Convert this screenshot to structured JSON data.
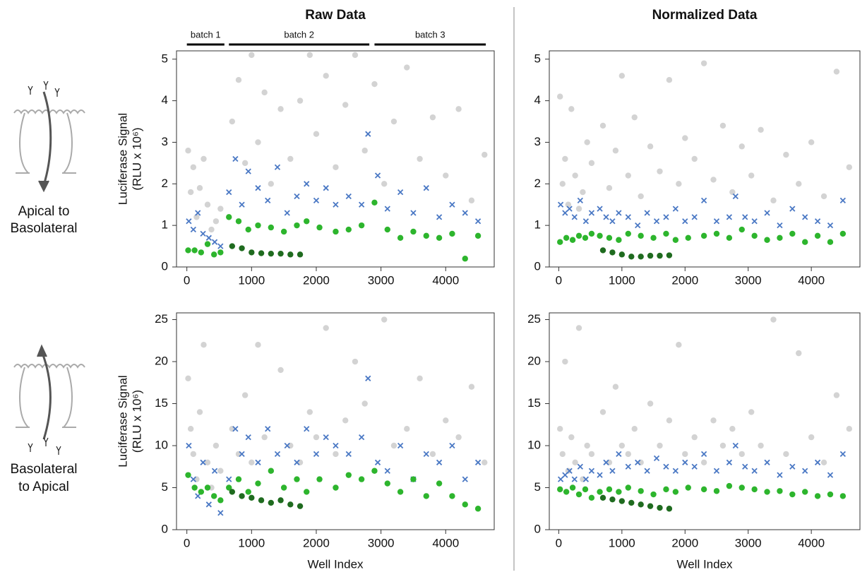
{
  "row_labels": [
    [
      "Apical to",
      "Basolateral"
    ],
    [
      "Basolateral",
      "to Apical"
    ]
  ],
  "chart_data": [
    {
      "type": "scatter",
      "title": "Raw Data",
      "y_label": [
        "Luciferase Signal",
        "(RLU x 10⁶)"
      ],
      "batches": [
        {
          "label": "batch 1",
          "range": [
            0,
            580
          ]
        },
        {
          "label": "batch 2",
          "range": [
            650,
            2820
          ]
        },
        {
          "label": "batch 3",
          "range": [
            2900,
            4620
          ]
        }
      ],
      "xlim": [
        -160,
        4750
      ],
      "xticks": [
        0,
        1000,
        2000,
        3000,
        4000
      ],
      "ylim": [
        0,
        5.2
      ],
      "yticks": [
        0,
        1,
        2,
        3,
        4,
        5
      ],
      "series": [
        {
          "color": "#d3d3d3",
          "marker": "o",
          "x": [
            20,
            60,
            100,
            150,
            200,
            260,
            320,
            380,
            450,
            520,
            700,
            800,
            900,
            1000,
            1100,
            1200,
            1300,
            1450,
            1600,
            1750,
            1900,
            2000,
            2150,
            2300,
            2450,
            2600,
            2750,
            2900,
            3050,
            3200,
            3400,
            3600,
            3800,
            4000,
            4200,
            4400,
            4600
          ],
          "values": [
            2.8,
            1.8,
            2.4,
            1.2,
            1.9,
            2.6,
            1.5,
            0.9,
            1.1,
            1.4,
            3.5,
            4.5,
            2.5,
            5.1,
            3.0,
            4.2,
            2.0,
            3.8,
            2.6,
            4.0,
            5.1,
            3.2,
            4.6,
            2.4,
            3.9,
            5.1,
            2.8,
            4.4,
            2.0,
            3.5,
            4.8,
            2.6,
            3.6,
            2.2,
            3.8,
            1.6,
            2.7
          ]
        },
        {
          "color": "#4a78c4",
          "marker": "x",
          "x": [
            30,
            100,
            170,
            250,
            340,
            430,
            520,
            650,
            750,
            850,
            950,
            1100,
            1250,
            1400,
            1550,
            1700,
            1850,
            2000,
            2150,
            2300,
            2500,
            2700,
            2800,
            2950,
            3100,
            3300,
            3500,
            3700,
            3900,
            4100,
            4300,
            4500
          ],
          "values": [
            1.1,
            0.9,
            1.3,
            0.8,
            0.7,
            0.6,
            0.5,
            1.8,
            2.6,
            1.5,
            2.3,
            1.9,
            1.6,
            2.4,
            1.3,
            1.7,
            2.0,
            1.6,
            1.9,
            1.5,
            1.7,
            1.5,
            3.2,
            2.2,
            1.4,
            1.8,
            1.3,
            1.9,
            1.2,
            1.5,
            1.3,
            1.1
          ]
        },
        {
          "color": "#2db52d",
          "marker": "o",
          "x": [
            20,
            120,
            220,
            320,
            420,
            520,
            650,
            800,
            950,
            1100,
            1300,
            1500,
            1700,
            1850,
            2050,
            2300,
            2500,
            2700,
            2900,
            3100,
            3300,
            3500,
            3700,
            3900,
            4100,
            4300,
            4500
          ],
          "values": [
            0.4,
            0.4,
            0.35,
            0.55,
            0.3,
            0.35,
            1.2,
            1.1,
            0.9,
            1.0,
            0.95,
            0.85,
            1.0,
            1.1,
            0.95,
            0.85,
            0.9,
            1.0,
            1.55,
            0.9,
            0.7,
            0.85,
            0.75,
            0.7,
            0.8,
            0.2,
            0.75
          ]
        },
        {
          "color": "#1f6b1f",
          "marker": "o",
          "x": [
            700,
            850,
            1000,
            1150,
            1300,
            1450,
            1600,
            1750
          ],
          "values": [
            0.5,
            0.45,
            0.35,
            0.33,
            0.32,
            0.32,
            0.3,
            0.3
          ]
        }
      ]
    },
    {
      "type": "scatter",
      "title": "Normalized Data",
      "xlim": [
        -150,
        4770
      ],
      "xticks": [
        0,
        1000,
        2000,
        3000,
        4000
      ],
      "ylim": [
        0,
        5.2
      ],
      "yticks": [
        0,
        1,
        2,
        3,
        4,
        5
      ],
      "series": [
        {
          "color": "#d3d3d3",
          "marker": "o",
          "x": [
            20,
            60,
            100,
            150,
            200,
            260,
            320,
            380,
            450,
            520,
            700,
            800,
            900,
            1000,
            1100,
            1200,
            1300,
            1450,
            1600,
            1750,
            1900,
            2000,
            2150,
            2300,
            2450,
            2600,
            2750,
            2900,
            3050,
            3200,
            3400,
            3600,
            3800,
            4000,
            4200,
            4400,
            4600
          ],
          "values": [
            4.1,
            2.0,
            2.6,
            1.5,
            3.8,
            2.2,
            1.4,
            1.8,
            3.0,
            2.5,
            3.4,
            1.9,
            2.8,
            4.6,
            2.2,
            3.6,
            1.7,
            2.9,
            2.3,
            4.5,
            2.0,
            3.1,
            2.6,
            4.9,
            2.1,
            3.4,
            1.8,
            2.9,
            2.2,
            3.3,
            1.6,
            2.7,
            2.0,
            3.0,
            1.7,
            4.7,
            2.4
          ]
        },
        {
          "color": "#4a78c4",
          "marker": "x",
          "x": [
            30,
            100,
            170,
            250,
            340,
            430,
            520,
            650,
            750,
            850,
            950,
            1100,
            1250,
            1400,
            1550,
            1700,
            1850,
            2000,
            2150,
            2300,
            2500,
            2700,
            2800,
            2950,
            3100,
            3300,
            3500,
            3700,
            3900,
            4100,
            4300,
            4500
          ],
          "values": [
            1.5,
            1.3,
            1.4,
            1.2,
            1.6,
            1.1,
            1.3,
            1.4,
            1.2,
            1.1,
            1.3,
            1.2,
            1.0,
            1.3,
            1.1,
            1.2,
            1.4,
            1.1,
            1.2,
            1.6,
            1.1,
            1.2,
            1.7,
            1.2,
            1.1,
            1.3,
            1.0,
            1.4,
            1.2,
            1.1,
            1.0,
            1.6
          ]
        },
        {
          "color": "#2db52d",
          "marker": "o",
          "x": [
            20,
            120,
            220,
            320,
            420,
            520,
            650,
            800,
            950,
            1100,
            1300,
            1500,
            1700,
            1850,
            2050,
            2300,
            2500,
            2700,
            2900,
            3100,
            3300,
            3500,
            3700,
            3900,
            4100,
            4300,
            4500
          ],
          "values": [
            0.6,
            0.7,
            0.65,
            0.75,
            0.7,
            0.8,
            0.75,
            0.7,
            0.65,
            0.8,
            0.75,
            0.7,
            0.8,
            0.65,
            0.7,
            0.75,
            0.8,
            0.7,
            0.9,
            0.75,
            0.65,
            0.7,
            0.8,
            0.6,
            0.75,
            0.6,
            0.8
          ]
        },
        {
          "color": "#1f6b1f",
          "marker": "o",
          "x": [
            700,
            850,
            1000,
            1150,
            1300,
            1450,
            1600,
            1750
          ],
          "values": [
            0.4,
            0.35,
            0.3,
            0.25,
            0.25,
            0.27,
            0.27,
            0.28
          ]
        }
      ]
    },
    {
      "type": "scatter",
      "y_label": [
        "Luciferase Signal",
        "(RLU x 10⁶)"
      ],
      "x_label": "Well Index",
      "xlim": [
        -160,
        4750
      ],
      "xticks": [
        0,
        1000,
        2000,
        3000,
        4000
      ],
      "ylim": [
        0,
        25.8
      ],
      "yticks": [
        0,
        5,
        10,
        15,
        20,
        25
      ],
      "series": [
        {
          "color": "#d3d3d3",
          "marker": "o",
          "x": [
            20,
            60,
            100,
            150,
            200,
            260,
            320,
            380,
            450,
            520,
            700,
            800,
            900,
            1000,
            1100,
            1200,
            1300,
            1450,
            1600,
            1750,
            1900,
            2000,
            2150,
            2300,
            2450,
            2600,
            2750,
            2900,
            3050,
            3200,
            3400,
            3600,
            3800,
            4000,
            4200,
            4400,
            4600
          ],
          "values": [
            18,
            12,
            9,
            6,
            14,
            22,
            8,
            5,
            10,
            7,
            12,
            9,
            16,
            8,
            22,
            11,
            7,
            19,
            10,
            8,
            14,
            11,
            24,
            9,
            13,
            20,
            15,
            7,
            25,
            10,
            12,
            18,
            9,
            13,
            11,
            17,
            8
          ]
        },
        {
          "color": "#4a78c4",
          "marker": "x",
          "x": [
            30,
            100,
            170,
            250,
            340,
            430,
            520,
            650,
            750,
            850,
            950,
            1100,
            1250,
            1400,
            1550,
            1700,
            1850,
            2000,
            2150,
            2300,
            2500,
            2700,
            2800,
            2950,
            3100,
            3300,
            3500,
            3700,
            3900,
            4100,
            4300,
            4500
          ],
          "values": [
            10,
            6,
            4,
            8,
            3,
            7,
            2,
            6,
            12,
            9,
            11,
            8,
            12,
            9,
            10,
            8,
            12,
            9,
            11,
            10,
            9,
            11,
            18,
            8,
            7,
            10,
            6,
            9,
            8,
            10,
            6,
            8
          ]
        },
        {
          "color": "#2db52d",
          "marker": "o",
          "x": [
            20,
            120,
            220,
            320,
            420,
            520,
            650,
            800,
            950,
            1100,
            1300,
            1500,
            1700,
            1850,
            2050,
            2300,
            2500,
            2700,
            2900,
            3100,
            3300,
            3500,
            3700,
            3900,
            4100,
            4300,
            4500
          ],
          "values": [
            6.5,
            5,
            4.5,
            5,
            4,
            3.5,
            5,
            6,
            4.5,
            5.5,
            7,
            5,
            6,
            4.5,
            6,
            5,
            6.5,
            6,
            7,
            5.5,
            4.5,
            6,
            4,
            5.5,
            4,
            3,
            2.5
          ]
        },
        {
          "color": "#1f6b1f",
          "marker": "o",
          "x": [
            700,
            850,
            1000,
            1150,
            1300,
            1450,
            1600,
            1750
          ],
          "values": [
            4.5,
            4,
            3.8,
            3.5,
            3.2,
            3.5,
            3.0,
            2.8
          ]
        }
      ]
    },
    {
      "type": "scatter",
      "x_label": "Well Index",
      "xlim": [
        -150,
        4770
      ],
      "xticks": [
        0,
        1000,
        2000,
        3000,
        4000
      ],
      "ylim": [
        0,
        25.8
      ],
      "yticks": [
        0,
        5,
        10,
        15,
        20,
        25
      ],
      "series": [
        {
          "color": "#d3d3d3",
          "marker": "o",
          "x": [
            20,
            60,
            100,
            150,
            200,
            260,
            320,
            380,
            450,
            520,
            700,
            800,
            900,
            1000,
            1100,
            1200,
            1300,
            1450,
            1600,
            1750,
            1900,
            2000,
            2150,
            2300,
            2450,
            2600,
            2750,
            2900,
            3050,
            3200,
            3400,
            3600,
            3800,
            4000,
            4200,
            4400,
            4600
          ],
          "values": [
            12,
            9,
            20,
            7,
            11,
            8,
            24,
            6,
            10,
            9,
            14,
            8,
            17,
            10,
            9,
            12,
            8,
            15,
            10,
            13,
            22,
            9,
            11,
            8,
            13,
            10,
            12,
            9,
            14,
            10,
            25,
            9,
            21,
            11,
            8,
            16,
            12
          ]
        },
        {
          "color": "#4a78c4",
          "marker": "x",
          "x": [
            30,
            100,
            170,
            250,
            340,
            430,
            520,
            650,
            750,
            850,
            950,
            1100,
            1250,
            1400,
            1550,
            1700,
            1850,
            2000,
            2150,
            2300,
            2500,
            2700,
            2800,
            2950,
            3100,
            3300,
            3500,
            3700,
            3900,
            4100,
            4300,
            4500
          ],
          "values": [
            6,
            6.5,
            7,
            6,
            7.5,
            6,
            7,
            6.5,
            8,
            7,
            9,
            7.5,
            8,
            7,
            8.5,
            7.5,
            7,
            8,
            7.5,
            9,
            7,
            8,
            10,
            7.5,
            7,
            8,
            6.5,
            7.5,
            7,
            8,
            6.5,
            9
          ]
        },
        {
          "color": "#2db52d",
          "marker": "o",
          "x": [
            20,
            120,
            220,
            320,
            420,
            520,
            650,
            800,
            950,
            1100,
            1300,
            1500,
            1700,
            1850,
            2050,
            2300,
            2500,
            2700,
            2900,
            3100,
            3300,
            3500,
            3700,
            3900,
            4100,
            4300,
            4500
          ],
          "values": [
            4.8,
            4.5,
            5,
            4.2,
            4.8,
            3.8,
            4.5,
            4.8,
            4.5,
            5,
            4.6,
            4.2,
            4.8,
            4.5,
            5,
            4.8,
            4.6,
            5.2,
            5,
            4.8,
            4.5,
            4.6,
            4.2,
            4.5,
            4.0,
            4.2,
            4.0
          ]
        },
        {
          "color": "#1f6b1f",
          "marker": "o",
          "x": [
            700,
            850,
            1000,
            1150,
            1300,
            1450,
            1600,
            1750
          ],
          "values": [
            3.8,
            3.6,
            3.4,
            3.2,
            3.0,
            2.8,
            2.6,
            2.5
          ]
        }
      ]
    }
  ]
}
